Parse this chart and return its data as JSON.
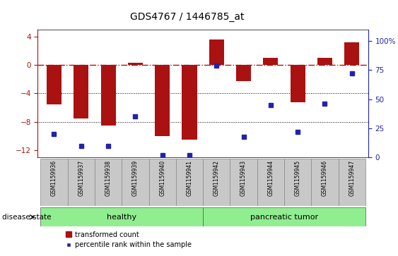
{
  "title": "GDS4767 / 1446785_at",
  "samples": [
    "GSM1159936",
    "GSM1159937",
    "GSM1159938",
    "GSM1159939",
    "GSM1159940",
    "GSM1159941",
    "GSM1159942",
    "GSM1159943",
    "GSM1159944",
    "GSM1159945",
    "GSM1159946",
    "GSM1159947"
  ],
  "red_values": [
    -5.5,
    -7.5,
    -8.5,
    0.3,
    -10.0,
    -10.5,
    3.6,
    -2.3,
    1.0,
    -5.2,
    1.0,
    3.2
  ],
  "blue_values_raw": [
    20,
    10,
    10,
    35,
    2,
    2,
    79,
    18,
    45,
    22,
    46,
    72
  ],
  "ylim_left": [
    -13,
    5
  ],
  "yticks_left": [
    4,
    0,
    -4,
    -8,
    -12
  ],
  "ylim_right": [
    0,
    110
  ],
  "yticks_right": [
    0,
    25,
    50,
    75,
    100
  ],
  "ytick_labels_right": [
    "0",
    "25",
    "50",
    "75",
    "100%"
  ],
  "red_color": "#AA1111",
  "blue_color": "#2222AA",
  "bar_width": 0.55,
  "legend_red": "transformed count",
  "legend_blue": "percentile rank within the sample",
  "group_boundary": 6,
  "healthy_color": "#90EE90",
  "tumor_color": "#90EE90",
  "label_bg": "#C8C8C8",
  "title_fontsize": 10,
  "tick_fontsize": 7.5,
  "sample_fontsize": 5.5,
  "group_fontsize": 8,
  "legend_fontsize": 7
}
